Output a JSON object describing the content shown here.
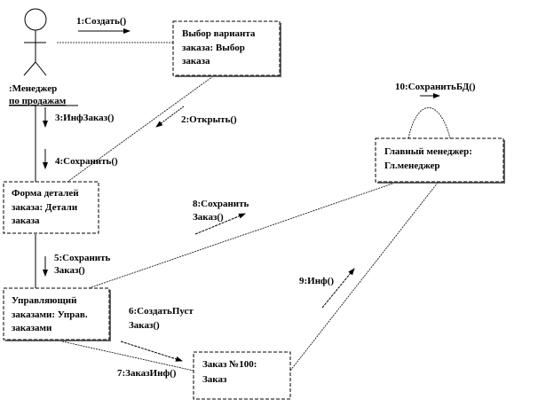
{
  "actor": {
    "name_line1": ":Менеджер",
    "name_line2": "по продажам"
  },
  "objects": {
    "variant_select": [
      "Выбор варианта",
      "заказа: Выбор",
      "заказа"
    ],
    "order_details": [
      "Форма деталей",
      "заказа: Детали",
      "заказа"
    ],
    "order_manager": [
      "Управляющий",
      "заказами: Управ.",
      "заказами"
    ],
    "order_100": [
      "Заказ №100:",
      "Заказ"
    ],
    "chief_manager": [
      "Главный менеджер:",
      "Гл.менеджер"
    ]
  },
  "messages": {
    "m1": [
      "1:Создать()"
    ],
    "m2": [
      "2:Открыть()"
    ],
    "m3": [
      "3:ИнфЗаказ()"
    ],
    "m4": [
      "4:Сохранить()"
    ],
    "m5": [
      "5:Сохранить",
      "Заказ()"
    ],
    "m6": [
      "6:СоздатьПуст",
      "Заказ()"
    ],
    "m7": [
      "7:ЗаказИнф()"
    ],
    "m8": [
      "8:Сохранить",
      "Заказ()"
    ],
    "m9": [
      "9:Инф()"
    ],
    "m10": [
      "10:СохранитьБД()"
    ]
  }
}
